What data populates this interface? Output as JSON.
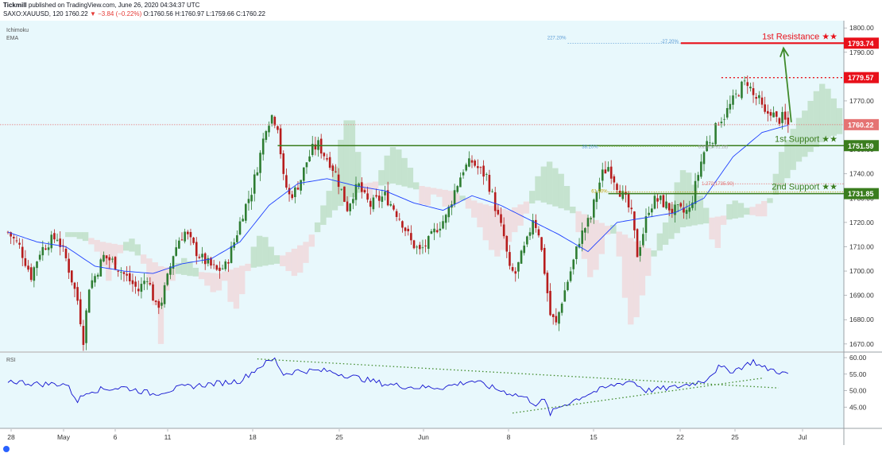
{
  "header": {
    "publisher": "Tickmill",
    "published_text": "published on TradingView.com, June 26, 2020 04:34:37 UTC",
    "symbol": "SAXO:XAUUSD, 120",
    "last": "1760.22",
    "change": "▼ −3.84 (−0.22%)",
    "ohlc": "O:1760.56 H:1760.97 L:1759.66 C:1760.22"
  },
  "indicators": {
    "ichimoku": "Ichimoku",
    "ema": "EMA",
    "rsi": "RSI"
  },
  "colors": {
    "background": "#e8f8fc",
    "up_candle": "#2e7d32",
    "down_candle": "#b71c1c",
    "ema": "#1e40ff",
    "rsi": "#1010d0",
    "resistance": "#e8101a",
    "support": "#3a7d1e",
    "cloud_green": "#b9dcc0",
    "cloud_red": "#f2d5d8",
    "arrow": "#3f8a2a"
  },
  "chart_data": [
    {
      "type": "candlestick",
      "title": "",
      "y_ticks": [
        "1800.00",
        "1790.00",
        "1780.00",
        "1770.00",
        "1760.00",
        "1750.00",
        "1740.00",
        "1730.00",
        "1720.00",
        "1710.00",
        "1700.00",
        "1690.00",
        "1680.00",
        "1670.00"
      ],
      "ylim": [
        1667,
        1803
      ],
      "x_ticks": [
        "28",
        "May",
        "6",
        "11",
        "18",
        "25",
        "Jun",
        "8",
        "15",
        "22",
        "25",
        "Jul"
      ],
      "price_labels": [
        {
          "name": "resistance",
          "value": "1793.74"
        },
        {
          "name": "swing-high",
          "value": "1779.57"
        },
        {
          "name": "last",
          "value": "1760.22"
        },
        {
          "name": "support1",
          "value": "1751.59"
        },
        {
          "name": "support2",
          "value": "1731.85"
        }
      ],
      "annotations": {
        "resistance_title": "1st Resistance ★★",
        "support1_title": "1st Support ★★",
        "support2_title": "2nd Support ★★",
        "fib_227": "227.20%",
        "fib_neg27": "-27.20%",
        "fib_382": "38.20%",
        "fib_618": "61.80%",
        "fib_1272": "1.272(1735.90)",
        "fib_small": "0.618(1751.18)"
      },
      "series": [
        {
          "name": "price",
          "path": [
            [
              0,
              1716
            ],
            [
              4,
              1710
            ],
            [
              8,
              1698
            ],
            [
              11,
              1708
            ],
            [
              14,
              1712
            ],
            [
              17,
              1714
            ],
            [
              20,
              1705
            ],
            [
              24,
              1688
            ],
            [
              26,
              1672
            ],
            [
              28,
              1694
            ],
            [
              30,
              1698
            ],
            [
              33,
              1706
            ],
            [
              36,
              1704
            ],
            [
              39,
              1700
            ],
            [
              42,
              1696
            ],
            [
              45,
              1692
            ],
            [
              48,
              1698
            ],
            [
              51,
              1685
            ],
            [
              53,
              1688
            ],
            [
              55,
              1697
            ],
            [
              57,
              1707
            ],
            [
              59,
              1713
            ],
            [
              61,
              1716
            ],
            [
              63,
              1712
            ],
            [
              65,
              1708
            ],
            [
              67,
              1705
            ],
            [
              69,
              1703
            ],
            [
              72,
              1700
            ],
            [
              75,
              1702
            ],
            [
              78,
              1712
            ],
            [
              81,
              1724
            ],
            [
              84,
              1733
            ],
            [
              87,
              1748
            ],
            [
              89,
              1760
            ],
            [
              91,
              1764
            ],
            [
              93,
              1760
            ],
            [
              95,
              1738
            ],
            [
              97,
              1731
            ],
            [
              99,
              1733
            ],
            [
              101,
              1738
            ],
            [
              103,
              1745
            ],
            [
              105,
              1750
            ],
            [
              107,
              1752
            ],
            [
              109,
              1748
            ],
            [
              111,
              1745
            ],
            [
              113,
              1740
            ],
            [
              115,
              1733
            ],
            [
              117,
              1726
            ],
            [
              119,
              1732
            ],
            [
              121,
              1735
            ],
            [
              123,
              1730
            ],
            [
              125,
              1727
            ],
            [
              127,
              1729
            ],
            [
              130,
              1731
            ],
            [
              133,
              1726
            ],
            [
              136,
              1720
            ],
            [
              139,
              1712
            ],
            [
              142,
              1708
            ],
            [
              145,
              1712
            ],
            [
              148,
              1718
            ],
            [
              151,
              1722
            ],
            [
              154,
              1733
            ],
            [
              157,
              1742
            ],
            [
              160,
              1745
            ],
            [
              163,
              1741
            ],
            [
              165,
              1739
            ],
            [
              167,
              1731
            ],
            [
              169,
              1722
            ],
            [
              171,
              1714
            ],
            [
              173,
              1700
            ],
            [
              175,
              1699
            ],
            [
              177,
              1706
            ],
            [
              179,
              1712
            ],
            [
              181,
              1722
            ],
            [
              183,
              1716
            ],
            [
              185,
              1700
            ],
            [
              187,
              1682
            ],
            [
              189,
              1678
            ],
            [
              191,
              1688
            ],
            [
              193,
              1696
            ],
            [
              195,
              1704
            ],
            [
              197,
              1713
            ],
            [
              199,
              1718
            ],
            [
              201,
              1722
            ],
            [
              203,
              1733
            ],
            [
              205,
              1740
            ],
            [
              207,
              1743
            ],
            [
              209,
              1738
            ],
            [
              211,
              1733
            ],
            [
              213,
              1729
            ],
            [
              215,
              1723
            ],
            [
              217,
              1707
            ],
            [
              219,
              1716
            ],
            [
              221,
              1726
            ],
            [
              223,
              1729
            ],
            [
              225,
              1729
            ],
            [
              227,
              1727
            ],
            [
              229,
              1725
            ],
            [
              231,
              1725
            ],
            [
              233,
              1724
            ],
            [
              235,
              1725
            ],
            [
              237,
              1735
            ],
            [
              239,
              1745
            ],
            [
              241,
              1753
            ],
            [
              243,
              1755
            ],
            [
              245,
              1762
            ],
            [
              247,
              1764
            ],
            [
              249,
              1768
            ],
            [
              251,
              1772
            ],
            [
              253,
              1776
            ],
            [
              255,
              1778
            ],
            [
              257,
              1772
            ],
            [
              259,
              1770
            ],
            [
              261,
              1764
            ],
            [
              263,
              1766
            ],
            [
              265,
              1762
            ],
            [
              267,
              1763
            ],
            [
              269,
              1760
            ]
          ]
        },
        {
          "name": "ema",
          "path": [
            [
              0,
              1716
            ],
            [
              10,
              1712
            ],
            [
              20,
              1710
            ],
            [
              30,
              1702
            ],
            [
              40,
              1700
            ],
            [
              50,
              1699
            ],
            [
              60,
              1703
            ],
            [
              70,
              1705
            ],
            [
              80,
              1712
            ],
            [
              90,
              1727
            ],
            [
              100,
              1736
            ],
            [
              110,
              1738
            ],
            [
              120,
              1735
            ],
            [
              130,
              1733
            ],
            [
              140,
              1728
            ],
            [
              150,
              1725
            ],
            [
              160,
              1731
            ],
            [
              170,
              1727
            ],
            [
              180,
              1721
            ],
            [
              190,
              1715
            ],
            [
              200,
              1708
            ],
            [
              210,
              1720
            ],
            [
              220,
              1722
            ],
            [
              230,
              1724
            ],
            [
              240,
              1730
            ],
            [
              250,
              1747
            ],
            [
              260,
              1757
            ],
            [
              269,
              1760
            ]
          ]
        },
        {
          "name": "rsi",
          "ylim": [
            40,
            60
          ],
          "y_ticks": [
            "60.00",
            "55.00",
            "50.00",
            "45.00"
          ],
          "path": [
            [
              0,
              53
            ],
            [
              10,
              52
            ],
            [
              20,
              52
            ],
            [
              24,
              47
            ],
            [
              28,
              50
            ],
            [
              40,
              51
            ],
            [
              50,
              49
            ],
            [
              60,
              51
            ],
            [
              70,
              52
            ],
            [
              80,
              53
            ],
            [
              88,
              58
            ],
            [
              92,
              59.5
            ],
            [
              95,
              55
            ],
            [
              100,
              56
            ],
            [
              110,
              56
            ],
            [
              120,
              54
            ],
            [
              130,
              52
            ],
            [
              140,
              51
            ],
            [
              150,
              51
            ],
            [
              160,
              53
            ],
            [
              170,
              50
            ],
            [
              178,
              48
            ],
            [
              182,
              46
            ],
            [
              185,
              47
            ],
            [
              187,
              43
            ],
            [
              190,
              45
            ],
            [
              200,
              49
            ],
            [
              210,
              52
            ],
            [
              215,
              53
            ],
            [
              220,
              50
            ],
            [
              230,
              51
            ],
            [
              240,
              53
            ],
            [
              245,
              57
            ],
            [
              250,
              56
            ],
            [
              255,
              58
            ],
            [
              257,
              59
            ],
            [
              260,
              57
            ],
            [
              265,
              56
            ],
            [
              268,
              55
            ]
          ]
        }
      ]
    }
  ]
}
